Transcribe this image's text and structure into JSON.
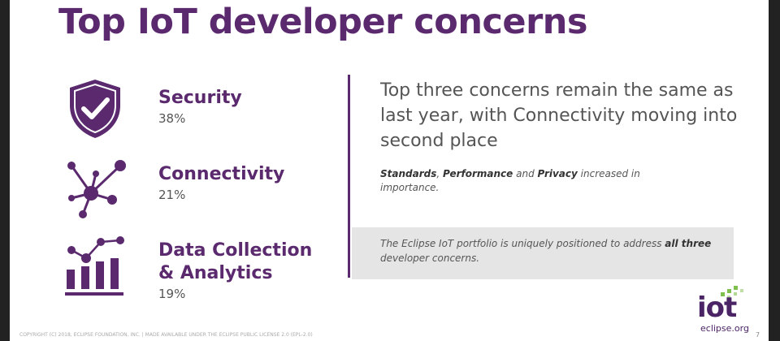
{
  "slide": {
    "title": "Top IoT developer concerns",
    "concerns": [
      {
        "label": "Security",
        "percent": "38%",
        "icon": "shield-check-icon"
      },
      {
        "label": "Connectivity",
        "percent": "21%",
        "icon": "network-nodes-icon"
      },
      {
        "label_line1": "Data Collection",
        "label_line2": "& Analytics",
        "percent": "19%",
        "icon": "chart-analytics-icon"
      }
    ],
    "headline": "Top three concerns remain the same as last year, with Connectivity moving into second place",
    "note": {
      "part1": "Standards",
      "sep1": ", ",
      "part2": "Performance",
      "sep2": " and ",
      "part3": "Privacy",
      "rest": " increased in importance."
    },
    "callout": {
      "pre": "The Eclipse IoT portfolio is uniquely positioned to address ",
      "bold": "all three",
      "post": " developer concerns."
    },
    "footer": "COPYRIGHT (C) 2018, ECLIPSE FOUNDATION, INC. | MADE AVAILABLE UNDER THE ECLIPSE PUBLIC LICENSE 2.0 (EPL-2.0)",
    "page_number": "7",
    "logo": {
      "word": "iot",
      "domain": "eclipse.org"
    }
  },
  "colors": {
    "brand": "#5b2a6e",
    "callout_bg": "#e5e5e5",
    "logo_green": "#7fbf4d"
  }
}
